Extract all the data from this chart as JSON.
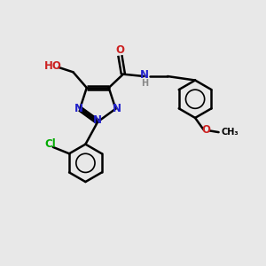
{
  "bg_color": "#e8e8e8",
  "bond_color": "#000000",
  "bond_width": 1.8,
  "atom_colors": {
    "C": "#000000",
    "N": "#2222cc",
    "O": "#cc2222",
    "H": "#888888",
    "Cl": "#00aa00"
  },
  "font_size": 8.5,
  "fig_size": [
    3.0,
    3.0
  ],
  "dpi": 100,
  "xlim": [
    0,
    10
  ],
  "ylim": [
    0,
    10
  ]
}
